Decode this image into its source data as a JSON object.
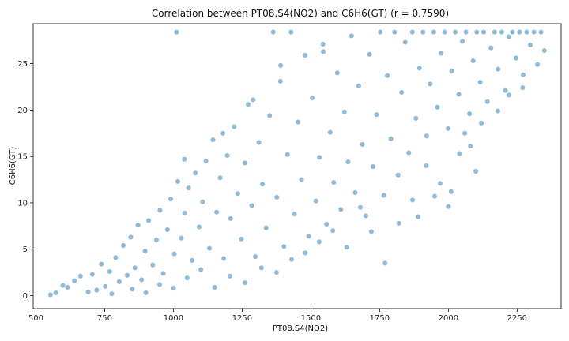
{
  "chart_data": {
    "type": "scatter",
    "title": "Correlation between PT08.S4(NO2) and C6H6(GT) (r = 0.7590)",
    "xlabel": "PT08.S4(NO2)",
    "ylabel": "C6H6(GT)",
    "xlim": [
      490,
      2410
    ],
    "ylim": [
      -1.4,
      29.3
    ],
    "xticks": [
      500,
      750,
      1000,
      1250,
      1500,
      1750,
      2000,
      2250
    ],
    "yticks": [
      0,
      5,
      10,
      15,
      20,
      25
    ],
    "grid": false,
    "marker_color": "#1f77b4",
    "marker_edge_color": "#ffffff",
    "marker_alpha": 0.5,
    "series": [
      {
        "points": [
          [
            553,
            0.1
          ],
          [
            572,
            0.3
          ],
          [
            598,
            1.1
          ],
          [
            615,
            0.9
          ],
          [
            640,
            1.6
          ],
          [
            662,
            2.1
          ],
          [
            690,
            0.4
          ],
          [
            705,
            2.3
          ],
          [
            721,
            0.6
          ],
          [
            738,
            3.4
          ],
          [
            752,
            1.0
          ],
          [
            768,
            2.6
          ],
          [
            776,
            0.2
          ],
          [
            790,
            4.1
          ],
          [
            803,
            1.5
          ],
          [
            818,
            5.4
          ],
          [
            832,
            2.2
          ],
          [
            845,
            6.3
          ],
          [
            860,
            3.0
          ],
          [
            871,
            7.6
          ],
          [
            884,
            1.7
          ],
          [
            897,
            4.8
          ],
          [
            910,
            8.1
          ],
          [
            925,
            3.3
          ],
          [
            938,
            6.0
          ],
          [
            951,
            9.2
          ],
          [
            963,
            2.4
          ],
          [
            978,
            7.1
          ],
          [
            990,
            10.4
          ],
          [
            1003,
            4.5
          ],
          [
            1011,
            28.4
          ],
          [
            1016,
            12.3
          ],
          [
            1029,
            6.2
          ],
          [
            1041,
            8.9
          ],
          [
            1055,
            11.6
          ],
          [
            1068,
            3.8
          ],
          [
            1080,
            13.2
          ],
          [
            1093,
            7.4
          ],
          [
            1106,
            10.1
          ],
          [
            1118,
            14.5
          ],
          [
            1131,
            5.1
          ],
          [
            1144,
            16.8
          ],
          [
            1157,
            9.0
          ],
          [
            1170,
            12.7
          ],
          [
            1183,
            4.0
          ],
          [
            1196,
            15.1
          ],
          [
            1208,
            8.3
          ],
          [
            1221,
            18.2
          ],
          [
            1234,
            11.0
          ],
          [
            1247,
            6.1
          ],
          [
            1260,
            14.3
          ],
          [
            1272,
            20.6
          ],
          [
            1285,
            9.7
          ],
          [
            1298,
            4.2
          ],
          [
            1311,
            16.5
          ],
          [
            1324,
            12.0
          ],
          [
            1337,
            7.3
          ],
          [
            1350,
            19.4
          ],
          [
            1363,
            28.4
          ],
          [
            1376,
            10.6
          ],
          [
            1389,
            23.1
          ],
          [
            1402,
            5.3
          ],
          [
            1415,
            15.2
          ],
          [
            1428,
            28.4
          ],
          [
            1440,
            8.8
          ],
          [
            1453,
            18.7
          ],
          [
            1466,
            12.5
          ],
          [
            1479,
            25.9
          ],
          [
            1492,
            6.4
          ],
          [
            1505,
            21.3
          ],
          [
            1518,
            10.2
          ],
          [
            1531,
            14.9
          ],
          [
            1544,
            27.1
          ],
          [
            1557,
            7.7
          ],
          [
            1570,
            17.6
          ],
          [
            1583,
            12.2
          ],
          [
            1596,
            24.0
          ],
          [
            1609,
            9.3
          ],
          [
            1622,
            19.8
          ],
          [
            1635,
            14.4
          ],
          [
            1648,
            28.0
          ],
          [
            1661,
            11.1
          ],
          [
            1674,
            22.6
          ],
          [
            1687,
            16.3
          ],
          [
            1700,
            8.6
          ],
          [
            1713,
            26.0
          ],
          [
            1726,
            13.9
          ],
          [
            1739,
            19.5
          ],
          [
            1752,
            28.4
          ],
          [
            1765,
            10.8
          ],
          [
            1778,
            23.7
          ],
          [
            1791,
            16.9
          ],
          [
            1804,
            28.4
          ],
          [
            1817,
            13.0
          ],
          [
            1830,
            21.9
          ],
          [
            1843,
            27.3
          ],
          [
            1856,
            15.4
          ],
          [
            1869,
            28.4
          ],
          [
            1882,
            19.1
          ],
          [
            1895,
            24.5
          ],
          [
            1908,
            28.4
          ],
          [
            1921,
            17.2
          ],
          [
            1934,
            22.8
          ],
          [
            1947,
            28.4
          ],
          [
            1960,
            20.3
          ],
          [
            1973,
            26.1
          ],
          [
            1986,
            28.4
          ],
          [
            1999,
            18.0
          ],
          [
            2012,
            24.2
          ],
          [
            2025,
            28.4
          ],
          [
            2038,
            21.7
          ],
          [
            2051,
            27.4
          ],
          [
            2064,
            28.4
          ],
          [
            2077,
            19.6
          ],
          [
            2090,
            25.3
          ],
          [
            2103,
            28.4
          ],
          [
            2116,
            23.0
          ],
          [
            2129,
            28.4
          ],
          [
            2142,
            20.9
          ],
          [
            2155,
            26.7
          ],
          [
            2168,
            28.4
          ],
          [
            2181,
            24.4
          ],
          [
            2194,
            28.4
          ],
          [
            2207,
            22.1
          ],
          [
            2220,
            27.9
          ],
          [
            2233,
            28.4
          ],
          [
            2246,
            25.6
          ],
          [
            2259,
            28.4
          ],
          [
            2272,
            23.8
          ],
          [
            2285,
            28.4
          ],
          [
            2298,
            27.0
          ],
          [
            2311,
            28.4
          ],
          [
            2324,
            24.9
          ],
          [
            2337,
            28.4
          ],
          [
            2349,
            26.4
          ],
          [
            1205,
            2.1
          ],
          [
            1260,
            1.4
          ],
          [
            1320,
            3.0
          ],
          [
            1375,
            2.5
          ],
          [
            1430,
            3.9
          ],
          [
            1480,
            4.6
          ],
          [
            1530,
            5.8
          ],
          [
            1580,
            7.0
          ],
          [
            1630,
            5.2
          ],
          [
            1680,
            9.5
          ],
          [
            1720,
            6.9
          ],
          [
            1770,
            3.5
          ],
          [
            1820,
            7.8
          ],
          [
            1870,
            10.3
          ],
          [
            1920,
            14.0
          ],
          [
            1970,
            12.1
          ],
          [
            2000,
            9.6
          ],
          [
            2040,
            15.3
          ],
          [
            2060,
            17.5
          ],
          [
            2100,
            13.4
          ],
          [
            850,
            0.7
          ],
          [
            900,
            0.3
          ],
          [
            950,
            1.2
          ],
          [
            1000,
            0.8
          ],
          [
            1050,
            1.9
          ],
          [
            1100,
            2.8
          ],
          [
            1150,
            0.9
          ],
          [
            1040,
            14.7
          ],
          [
            1180,
            17.5
          ],
          [
            1390,
            24.8
          ],
          [
            1290,
            21.1
          ],
          [
            1545,
            26.3
          ],
          [
            1890,
            8.5
          ],
          [
            1950,
            10.7
          ],
          [
            2010,
            11.2
          ],
          [
            2080,
            16.1
          ],
          [
            2120,
            18.6
          ],
          [
            2180,
            19.9
          ],
          [
            2220,
            21.6
          ],
          [
            2270,
            22.4
          ]
        ]
      }
    ]
  }
}
